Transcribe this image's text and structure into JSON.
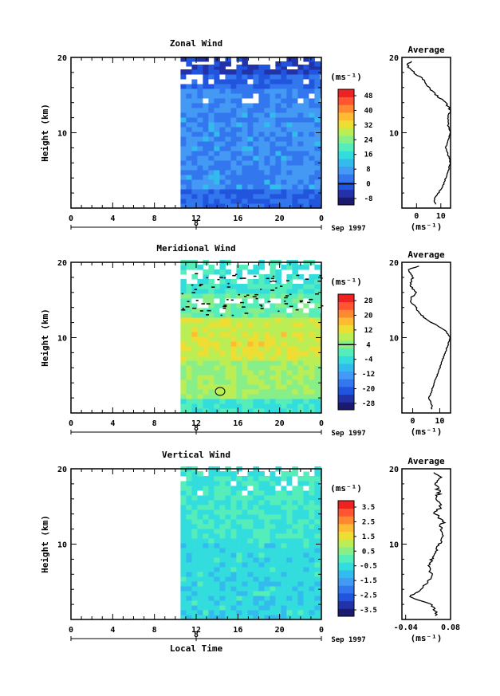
{
  "figure": {
    "x_axis_label": "Local Time",
    "y_axis_label": "Height (km)",
    "date_label": "Sep 1997",
    "day_marker": "8",
    "profile_unit": "(ms⁻¹)",
    "colorbar_unit": "(ms⁻¹)"
  },
  "chart_data": [
    {
      "type": "heatmap",
      "title": "Zonal Wind",
      "xlabel": "",
      "ylabel": "Height (km)",
      "xlim": [
        0,
        24
      ],
      "ylim": [
        0,
        20
      ],
      "x_ticks": [
        "0",
        "4",
        "8",
        "12",
        "16",
        "20",
        "0"
      ],
      "y_ticks": [
        "10",
        "20"
      ],
      "data_start_hour": 10.5,
      "colorbar": {
        "unit": "(ms⁻¹)",
        "levels": [
          "-8",
          "0",
          "8",
          "16",
          "24",
          "32",
          "40",
          "48"
        ],
        "zero_line_at": "0",
        "colors": [
          "#1a1a6e",
          "#2233aa",
          "#2255dd",
          "#3377ee",
          "#4499f5",
          "#33bbee",
          "#33dddd",
          "#55eebb",
          "#88ee88",
          "#bbee55",
          "#eedd33",
          "#ffbb33",
          "#ff8833",
          "#ff5533",
          "#ee2222"
        ]
      },
      "average_profile": {
        "title": "Average",
        "xlim": [
          -6,
          14
        ],
        "x_ticks": [
          "0",
          "10"
        ],
        "y_ticks": [
          "10",
          "20"
        ],
        "height_km": [
          0.5,
          1,
          2,
          3,
          4,
          5,
          6,
          7,
          8,
          9,
          10,
          11,
          12,
          13,
          14,
          15,
          16,
          17,
          18,
          19,
          19.5
        ],
        "values": [
          8,
          7,
          9,
          11,
          12,
          13,
          14,
          13,
          12,
          13,
          14,
          13,
          13,
          14,
          12,
          8,
          5,
          3,
          -1,
          -4,
          -2
        ]
      }
    },
    {
      "type": "heatmap",
      "title": "Meridional Wind",
      "xlabel": "",
      "ylabel": "Height (km)",
      "xlim": [
        0,
        24
      ],
      "ylim": [
        0,
        20
      ],
      "x_ticks": [
        "0",
        "4",
        "8",
        "12",
        "16",
        "20",
        "0"
      ],
      "y_ticks": [
        "10",
        "20"
      ],
      "data_start_hour": 10.5,
      "colorbar": {
        "unit": "(ms⁻¹)",
        "levels": [
          "-28",
          "-20",
          "-12",
          "-4",
          "4",
          "12",
          "20",
          "28"
        ],
        "zero_line_at": "4",
        "colors": [
          "#1a1a6e",
          "#2233aa",
          "#2255dd",
          "#3377ee",
          "#4499f5",
          "#33bbee",
          "#33dddd",
          "#55eebb",
          "#88ee88",
          "#bbee55",
          "#eedd33",
          "#ffbb33",
          "#ff8833",
          "#ff5533",
          "#ee2222"
        ]
      },
      "average_profile": {
        "title": "Average",
        "xlim": [
          -4,
          14
        ],
        "x_ticks": [
          "0",
          "10"
        ],
        "y_ticks": [
          "10",
          "20"
        ],
        "height_km": [
          0.5,
          1,
          2,
          3,
          4,
          5,
          6,
          7,
          8,
          9,
          10,
          11,
          12,
          13,
          14,
          15,
          16,
          17,
          18,
          19,
          19.5
        ],
        "values": [
          7,
          7,
          6,
          7,
          8,
          9,
          10,
          11,
          12,
          13,
          14,
          12,
          7,
          3,
          1,
          -1,
          1,
          -1,
          0,
          -2,
          2
        ]
      }
    },
    {
      "type": "heatmap",
      "title": "Vertical Wind",
      "xlabel": "Local Time",
      "ylabel": "Height (km)",
      "xlim": [
        0,
        24
      ],
      "ylim": [
        0,
        20
      ],
      "x_ticks": [
        "0",
        "4",
        "8",
        "12",
        "16",
        "20",
        "0"
      ],
      "y_ticks": [
        "10",
        "20"
      ],
      "data_start_hour": 10.5,
      "colorbar": {
        "unit": "(ms⁻¹)",
        "levels": [
          "-3.5",
          "-2.5",
          "-1.5",
          "-0.5",
          "0.5",
          "1.5",
          "2.5",
          "3.5"
        ],
        "zero_line_at": "",
        "colors": [
          "#1a1a6e",
          "#2233aa",
          "#2255dd",
          "#3377ee",
          "#4499f5",
          "#33bbee",
          "#33dddd",
          "#55eebb",
          "#88ee88",
          "#bbee55",
          "#eedd33",
          "#ffbb33",
          "#ff8833",
          "#ff5533",
          "#ee2222"
        ]
      },
      "average_profile": {
        "title": "Average",
        "xlim": [
          -0.05,
          0.08
        ],
        "x_ticks": [
          "-0.04",
          "0.08"
        ],
        "y_ticks": [
          "10",
          "20"
        ],
        "height_km": [
          0.5,
          1,
          2,
          3,
          4,
          5,
          6,
          7,
          8,
          9,
          10,
          11,
          12,
          13,
          14,
          15,
          16,
          17,
          18,
          19,
          19.5
        ],
        "values": [
          0.04,
          0.04,
          0.03,
          -0.03,
          0.0,
          0.02,
          0.03,
          0.02,
          0.03,
          0.04,
          0.05,
          0.06,
          0.05,
          0.06,
          0.04,
          0.05,
          0.04,
          0.05,
          0.04,
          0.05,
          0.03
        ]
      }
    }
  ]
}
